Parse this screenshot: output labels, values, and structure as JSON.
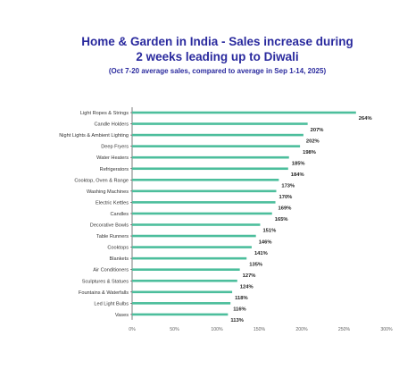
{
  "title_line_1": "Home & Garden in India - Sales increase during",
  "title_line_2": "2 weeks leading up to Diwali",
  "subtitle": "(Oct 7-20 average sales, compared to average in Sep 1-14, 2025)",
  "chart_data": {
    "type": "bar",
    "orientation": "horizontal",
    "title": "Home & Garden in India - Sales increase during 2 weeks leading up to Diwali",
    "subtitle": "(Oct 7-20 average sales, compared to average in Sep 1-14, 2025)",
    "categories": [
      "Light Ropes & Strings",
      "Candle Holders",
      "Night Lights & Ambient Lighting",
      "Deep Fryers",
      "Water Heaters",
      "Refrigerators",
      "Cooktop, Oven & Range",
      "Washing Machines",
      "Electric Kettles",
      "Candles",
      "Decorative Bowls",
      "Table Runners",
      "Cooktops",
      "Blankets",
      "Air Conditioners",
      "Sculptures & Statues",
      "Fountains & Waterfalls",
      "Led Light Bulbs",
      "Vases"
    ],
    "values": [
      264,
      207,
      202,
      198,
      185,
      184,
      173,
      170,
      169,
      165,
      151,
      146,
      141,
      135,
      127,
      124,
      118,
      116,
      113
    ],
    "value_labels": [
      "264%",
      "207%",
      "202%",
      "198%",
      "185%",
      "184%",
      "173%",
      "170%",
      "169%",
      "165%",
      "151%",
      "146%",
      "141%",
      "135%",
      "127%",
      "124%",
      "118%",
      "116%",
      "113%"
    ],
    "xlim": [
      0,
      300
    ],
    "x_ticks": [
      "0%",
      "50%",
      "100%",
      "150%",
      "200%",
      "250%",
      "300%"
    ],
    "x_tick_values": [
      0,
      50,
      100,
      150,
      200,
      250,
      300
    ],
    "bar_color": "#4cbe9c",
    "grid": false
  }
}
